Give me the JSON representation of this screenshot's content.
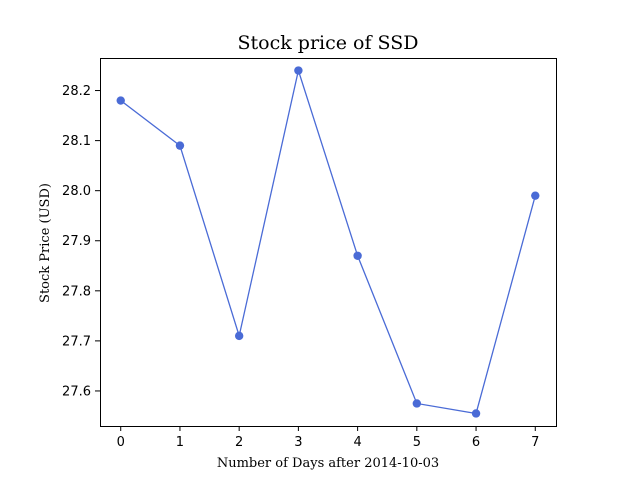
{
  "chart_data": {
    "type": "line",
    "title": "Stock price of SSD",
    "xlabel": "Number of Days after 2014-10-03",
    "ylabel": "Stock Price (USD)",
    "x": [
      0,
      1,
      2,
      3,
      4,
      5,
      6,
      7
    ],
    "series": [
      {
        "values": [
          28.18,
          28.09,
          27.71,
          28.24,
          27.87,
          27.575,
          27.555,
          27.99
        ],
        "color": "#4a6bd6"
      }
    ],
    "xlim": [
      -0.35,
      7.35
    ],
    "ylim": [
      27.53,
      28.265
    ],
    "xticks": [
      0,
      1,
      2,
      3,
      4,
      5,
      6,
      7
    ],
    "yticks": [
      27.6,
      27.7,
      27.8,
      27.9,
      28.0,
      28.1,
      28.2
    ],
    "ytick_labels": [
      "27.6",
      "27.7",
      "27.8",
      "27.9",
      "28.0",
      "28.1",
      "28.2"
    ],
    "grid": false,
    "marker": "circle"
  }
}
